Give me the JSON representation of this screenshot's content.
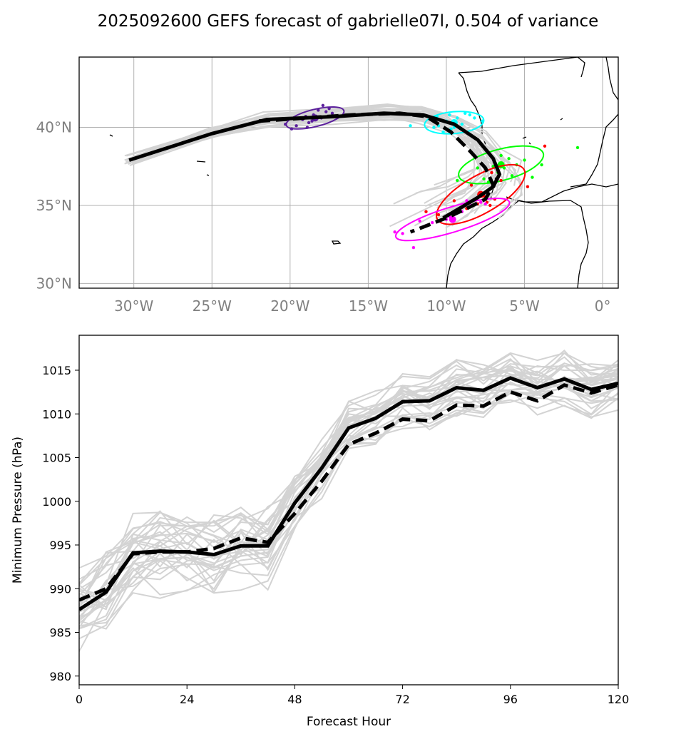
{
  "title": "2025092600 GEFS forecast of gabrielle07l, 0.504 of variance",
  "colors": {
    "ensemble": "#d3d3d3",
    "mean": "#000000",
    "grid": "#b0b0b0",
    "coast": "#000000",
    "geo_tick": "#808080",
    "ellipse_colors": [
      "#5b1f9c",
      "#00ffff",
      "#00ff00",
      "#ff0000",
      "#ff00ff"
    ]
  },
  "chart_data": [
    {
      "type": "line",
      "subtype": "track-map",
      "xlim": [
        -33.5,
        1.0
      ],
      "ylim": [
        29.7,
        44.5
      ],
      "x_ticks": [
        -30,
        -25,
        -20,
        -15,
        -10,
        -5,
        0
      ],
      "x_tick_labels": [
        "30°W",
        "25°W",
        "20°W",
        "15°W",
        "10°W",
        "5°W",
        "0°"
      ],
      "y_ticks": [
        30,
        35,
        40
      ],
      "y_tick_labels": [
        "30°N",
        "35°N",
        "40°N"
      ],
      "grid": true,
      "mean_track": {
        "style": "solid",
        "lon": [
          -30.3,
          -25.0,
          -21.5,
          -17.0,
          -14.0,
          -11.5,
          -9.5,
          -8.0,
          -7.0,
          -6.6,
          -7.0,
          -8.0,
          -9.0,
          -10.2
        ],
        "lat": [
          37.9,
          39.6,
          40.5,
          40.7,
          40.9,
          40.8,
          40.2,
          39.2,
          38.0,
          37.0,
          36.2,
          35.5,
          34.9,
          34.2
        ]
      },
      "dashed_track": {
        "style": "dashed",
        "lon": [
          -22.0,
          -19.0,
          -16.0,
          -13.0,
          -11.3,
          -9.7,
          -8.5,
          -7.5,
          -7.0,
          -7.5,
          -8.7,
          -10.0,
          -11.0,
          -12.3
        ],
        "lat": [
          40.4,
          40.6,
          40.8,
          40.9,
          40.7,
          39.7,
          38.5,
          37.4,
          36.3,
          35.4,
          34.8,
          34.2,
          33.8,
          33.3
        ]
      },
      "ellipses": [
        {
          "lon": -18.4,
          "lat": 40.6,
          "rx": 1.9,
          "ry": 0.55,
          "angle_deg": 14,
          "points": [
            [
              -19.6,
              40.1
            ],
            [
              -19.2,
              40.5
            ],
            [
              -18.8,
              40.3
            ],
            [
              -18.5,
              40.8
            ],
            [
              -18.0,
              40.6
            ],
            [
              -17.7,
              41.0
            ],
            [
              -17.3,
              40.9
            ],
            [
              -19.9,
              39.9
            ],
            [
              -18.2,
              41.1
            ],
            [
              -17.9,
              41.4
            ],
            [
              -19.0,
              40.7
            ],
            [
              -18.6,
              40.4
            ],
            [
              -20.3,
              40.2
            ],
            [
              -17.5,
              41.2
            ],
            [
              -18.9,
              40.0
            ]
          ]
        },
        {
          "lon": -9.5,
          "lat": 40.3,
          "rx": 1.9,
          "ry": 0.7,
          "angle_deg": 5,
          "points": [
            [
              -10.5,
              40.1
            ],
            [
              -10.0,
              40.4
            ],
            [
              -9.7,
              39.9
            ],
            [
              -9.3,
              40.6
            ],
            [
              -9.0,
              40.2
            ],
            [
              -10.8,
              40.0
            ],
            [
              -8.5,
              40.8
            ],
            [
              -8.2,
              40.6
            ],
            [
              -9.8,
              40.8
            ],
            [
              -10.2,
              39.7
            ],
            [
              -12.3,
              40.1
            ],
            [
              -7.7,
              40.4
            ],
            [
              -8.8,
              40.9
            ],
            [
              -9.5,
              40.0
            ],
            [
              -10.6,
              40.7
            ]
          ]
        },
        {
          "lon": -6.5,
          "lat": 37.6,
          "rx": 2.8,
          "ry": 1.0,
          "angle_deg": 15,
          "points": [
            [
              -6.5,
              38.2
            ],
            [
              -6.0,
              38.0
            ],
            [
              -7.0,
              37.5
            ],
            [
              -6.7,
              37.1
            ],
            [
              -5.5,
              37.6
            ],
            [
              -3.9,
              37.6
            ],
            [
              -4.5,
              36.8
            ],
            [
              -5.0,
              37.9
            ],
            [
              -7.6,
              36.7
            ],
            [
              -8.0,
              37.4
            ],
            [
              -9.3,
              36.6
            ],
            [
              -6.3,
              37.4
            ],
            [
              -1.6,
              38.7
            ],
            [
              -5.8,
              36.9
            ],
            [
              -7.3,
              36.5
            ]
          ]
        },
        {
          "lon": -7.8,
          "lat": 35.7,
          "rx": 3.2,
          "ry": 1.2,
          "angle_deg": 30,
          "points": [
            [
              -8.7,
              34.8
            ],
            [
              -9.2,
              34.6
            ],
            [
              -7.4,
              35.2
            ],
            [
              -6.9,
              35.4
            ],
            [
              -7.2,
              35.0
            ],
            [
              -10.5,
              34.4
            ],
            [
              -11.3,
              34.6
            ],
            [
              -9.5,
              35.3
            ],
            [
              -8.4,
              36.3
            ],
            [
              -7.1,
              37.1
            ],
            [
              -4.8,
              36.2
            ],
            [
              -3.7,
              38.8
            ],
            [
              -7.6,
              35.6
            ],
            [
              -8.0,
              35.1
            ],
            [
              -6.5,
              36.6
            ]
          ]
        },
        {
          "lon": -9.6,
          "lat": 34.1,
          "rx": 3.8,
          "ry": 0.8,
          "angle_deg": 17,
          "points": [
            [
              -12.8,
              33.2
            ],
            [
              -11.3,
              33.7
            ],
            [
              -10.5,
              34.0
            ],
            [
              -9.8,
              34.3
            ],
            [
              -9.0,
              34.6
            ],
            [
              -8.4,
              35.0
            ],
            [
              -7.8,
              35.2
            ],
            [
              -12.1,
              32.3
            ],
            [
              -13.3,
              33.3
            ],
            [
              -10.9,
              33.9
            ],
            [
              -9.4,
              34.5
            ],
            [
              -8.7,
              35.3
            ],
            [
              -11.7,
              34.0
            ],
            [
              -7.5,
              35.1
            ],
            [
              -10.0,
              34.1
            ]
          ]
        }
      ]
    },
    {
      "type": "line",
      "xlabel": "Forecast Hour",
      "ylabel": "Minimum Pressure (hPa)",
      "xlim": [
        0,
        120
      ],
      "ylim": [
        979,
        1019
      ],
      "x_ticks": [
        0,
        24,
        48,
        72,
        96,
        120
      ],
      "y_ticks": [
        980,
        985,
        990,
        995,
        1000,
        1005,
        1010,
        1015
      ],
      "x": [
        0,
        6,
        12,
        18,
        24,
        30,
        36,
        42,
        48,
        54,
        60,
        66,
        72,
        78,
        84,
        90,
        96,
        102,
        108,
        114,
        120
      ],
      "mean_solid": [
        987.6,
        989.6,
        994.1,
        994.3,
        994.2,
        993.9,
        994.9,
        994.9,
        999.8,
        1003.8,
        1008.4,
        1009.5,
        1011.4,
        1011.5,
        1013.0,
        1012.7,
        1014.1,
        1013.0,
        1014.0,
        1012.8,
        1013.5
      ],
      "mean_dashed": [
        988.7,
        990.0,
        994.0,
        994.2,
        994.2,
        994.6,
        995.8,
        995.3,
        998.6,
        1002.3,
        1006.5,
        1007.8,
        1009.4,
        1009.2,
        1011.0,
        1010.9,
        1012.5,
        1011.5,
        1013.3,
        1012.4,
        1013.3
      ]
    }
  ]
}
